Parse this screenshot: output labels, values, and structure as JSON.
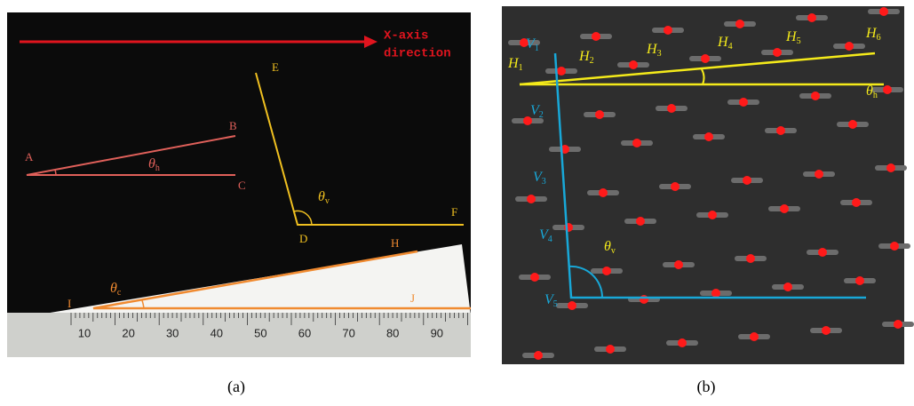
{
  "panel_a": {
    "axis_note": [
      "X-axis",
      "direction"
    ],
    "points": [
      "A",
      "B",
      "C",
      "D",
      "E",
      "F",
      "H",
      "I",
      "J"
    ],
    "angles": [
      {
        "symbol": "θ",
        "sub": "h"
      },
      {
        "symbol": "θ",
        "sub": "v"
      },
      {
        "symbol": "θ",
        "sub": "c"
      }
    ],
    "ruler": [
      10,
      20,
      30,
      40,
      50,
      60,
      70,
      80,
      90
    ],
    "caption": "(a)"
  },
  "panel_b": {
    "h_points": [
      {
        "symbol": "H",
        "sub": "1"
      },
      {
        "symbol": "H",
        "sub": "2"
      },
      {
        "symbol": "H",
        "sub": "3"
      },
      {
        "symbol": "H",
        "sub": "4"
      },
      {
        "symbol": "H",
        "sub": "5"
      },
      {
        "symbol": "H",
        "sub": "6"
      }
    ],
    "v_points": [
      {
        "symbol": "V",
        "sub": "1"
      },
      {
        "symbol": "V",
        "sub": "2"
      },
      {
        "symbol": "V",
        "sub": "3"
      },
      {
        "symbol": "V",
        "sub": "4"
      },
      {
        "symbol": "V",
        "sub": "5"
      }
    ],
    "angles": [
      {
        "symbol": "θ",
        "sub": "h"
      },
      {
        "symbol": "θ",
        "sub": "v"
      }
    ],
    "caption": "(b)"
  }
}
